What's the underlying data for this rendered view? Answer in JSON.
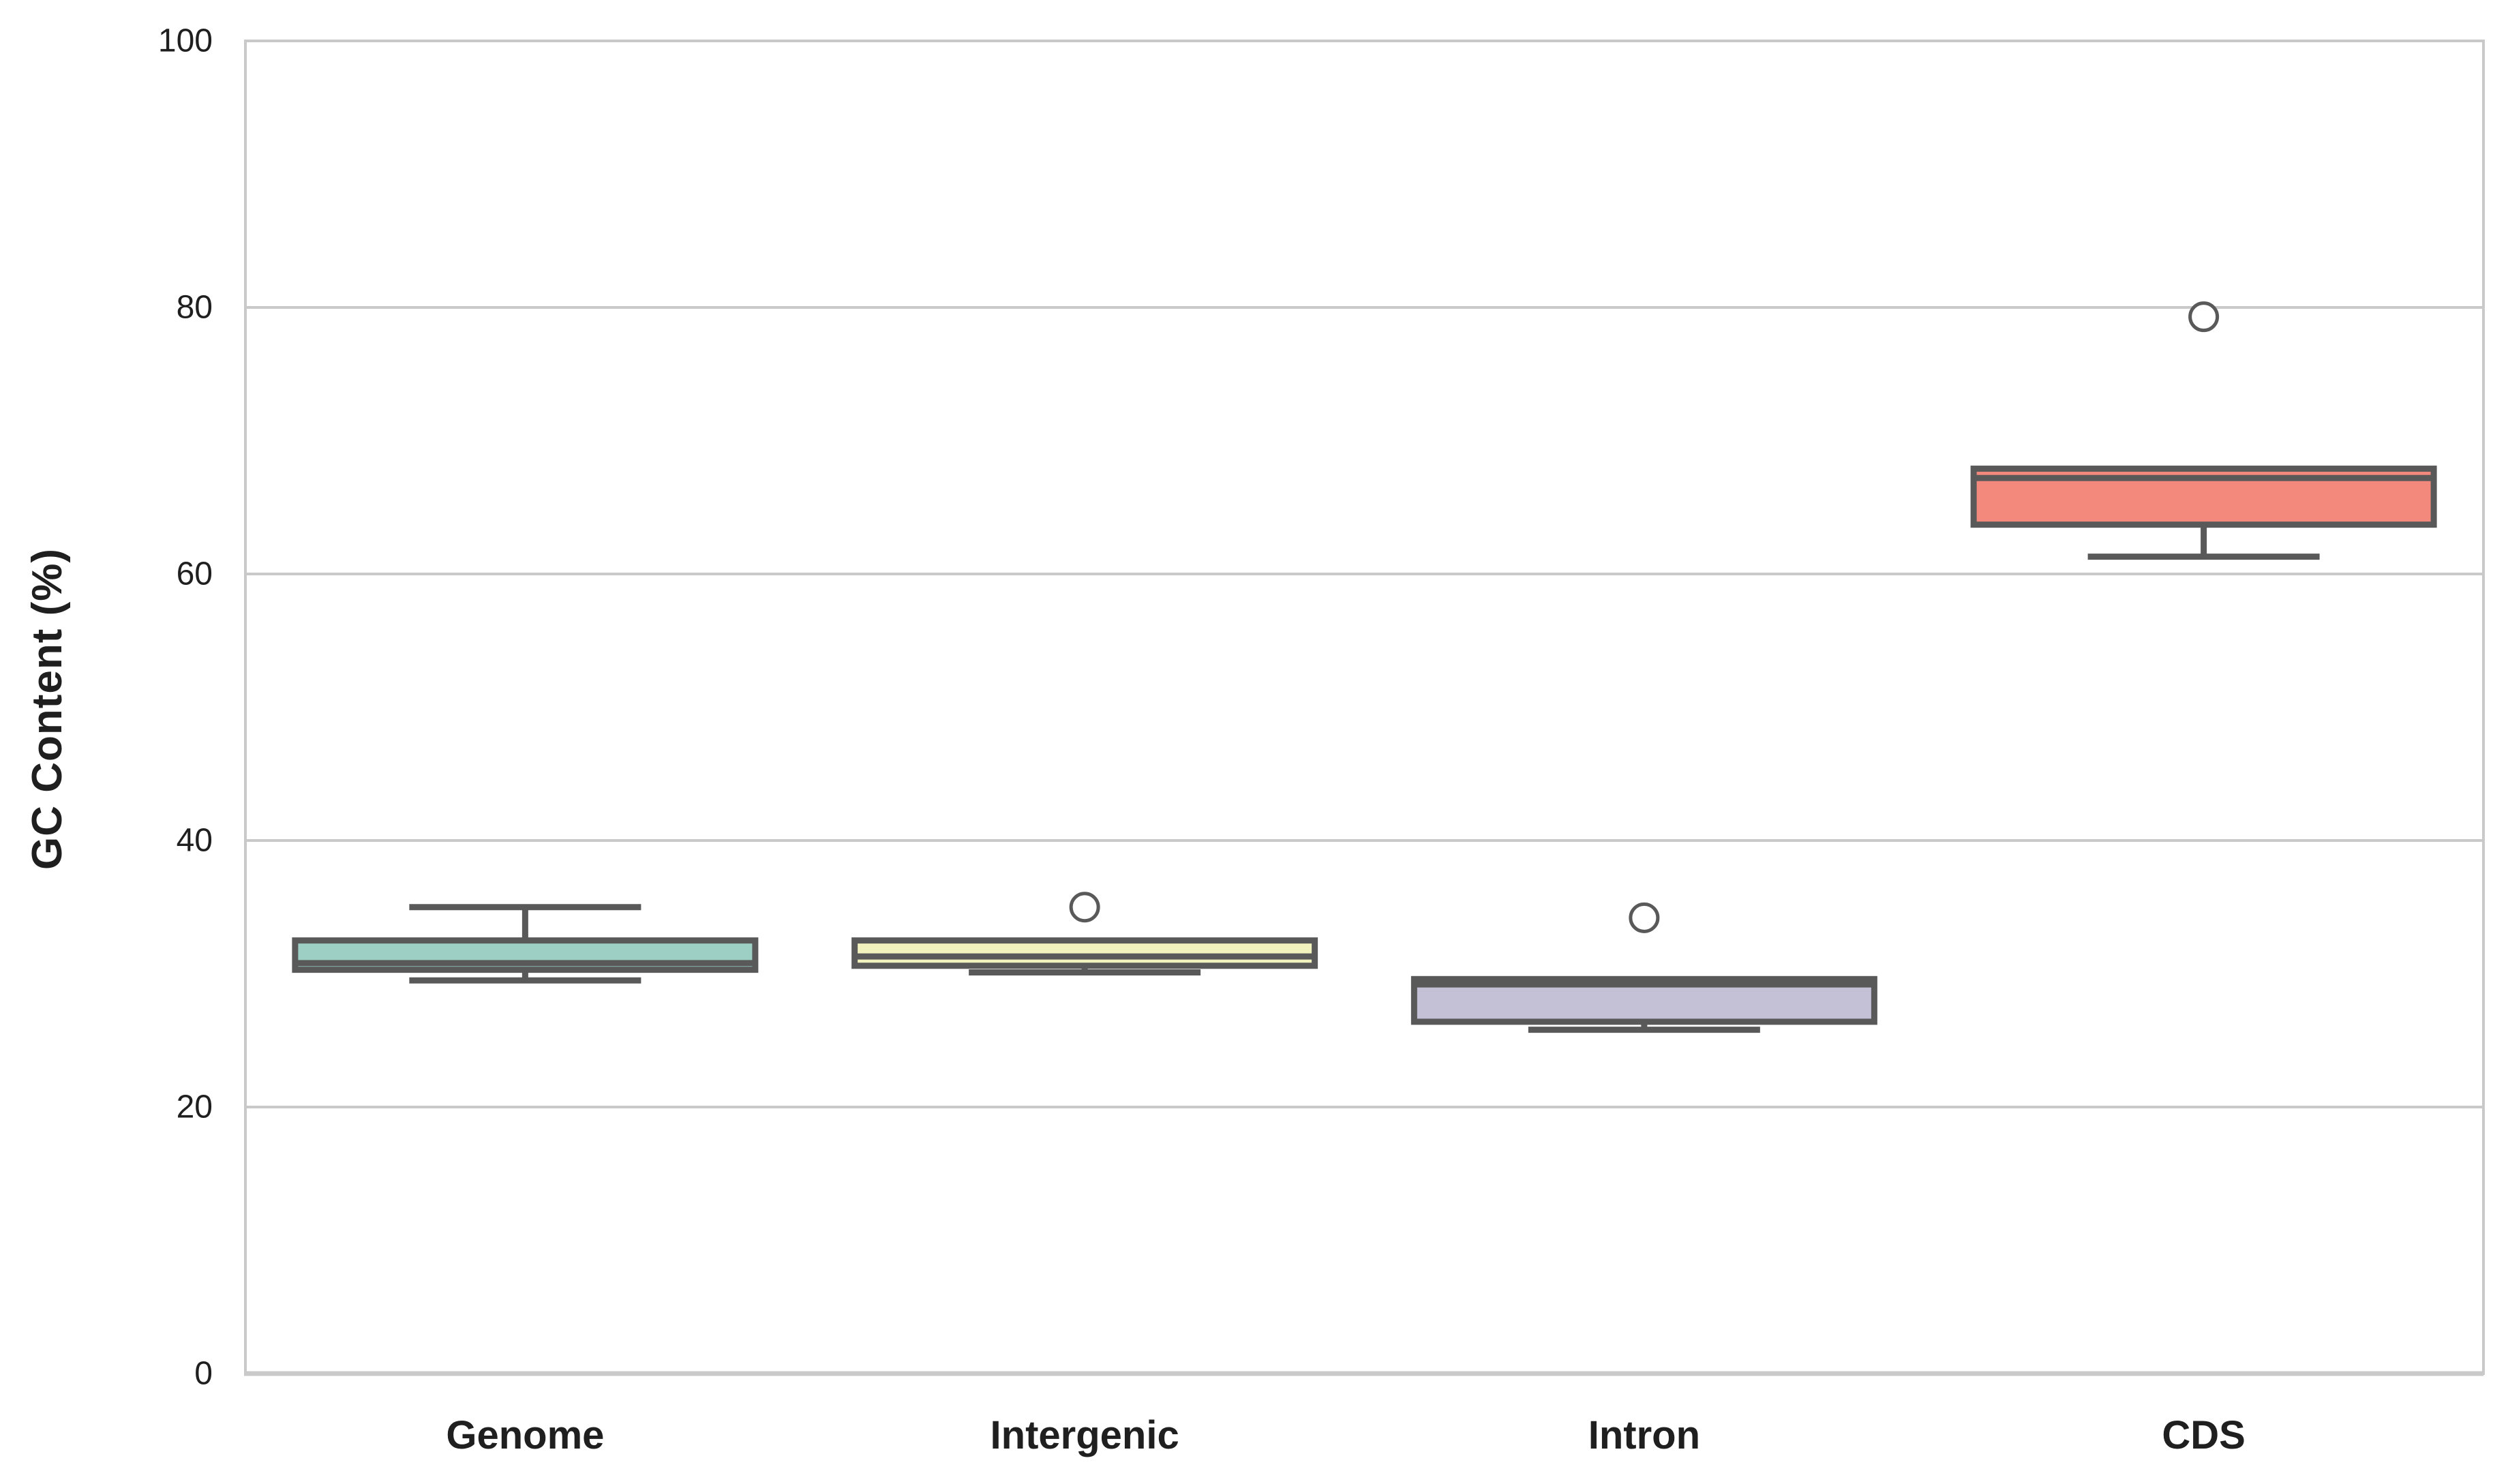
{
  "figure": {
    "background": "#ffffff"
  },
  "chart_data": {
    "type": "box",
    "title": "",
    "xlabel": "",
    "ylabel": "GC Content (%)",
    "categories": [
      "Genome",
      "Intergenic",
      "Intron",
      "CDS"
    ],
    "ylim": [
      0,
      100
    ],
    "yticks": [
      0,
      20,
      40,
      60,
      80,
      100
    ],
    "grid": "horizontal",
    "legend": "none",
    "colors": {
      "box_fills": [
        "#9dcfc5",
        "#f2f2bf",
        "#c4c1d7",
        "#f3887c"
      ],
      "box_edge": "#595959",
      "grid_line": "#c9c9c9",
      "spine": "#c9c9c9",
      "text": "#1f1f1f",
      "outlier_fill": "#ffffff"
    },
    "series": [
      {
        "name": "Genome",
        "whisker_low": 29.5,
        "q1": 30.3,
        "median": 30.8,
        "q3": 32.5,
        "whisker_high": 35.0,
        "outliers": []
      },
      {
        "name": "Intergenic",
        "whisker_low": 30.1,
        "q1": 30.6,
        "median": 31.3,
        "q3": 32.5,
        "whisker_high": 32.5,
        "outliers": [
          35.0
        ]
      },
      {
        "name": "Intron",
        "whisker_low": 25.8,
        "q1": 26.4,
        "median": 29.2,
        "q3": 29.6,
        "whisker_high": 29.6,
        "outliers": [
          34.2
        ]
      },
      {
        "name": "CDS",
        "whisker_low": 61.3,
        "q1": 63.7,
        "median": 67.2,
        "q3": 67.9,
        "whisker_high": 67.9,
        "outliers": [
          79.3
        ]
      }
    ]
  }
}
